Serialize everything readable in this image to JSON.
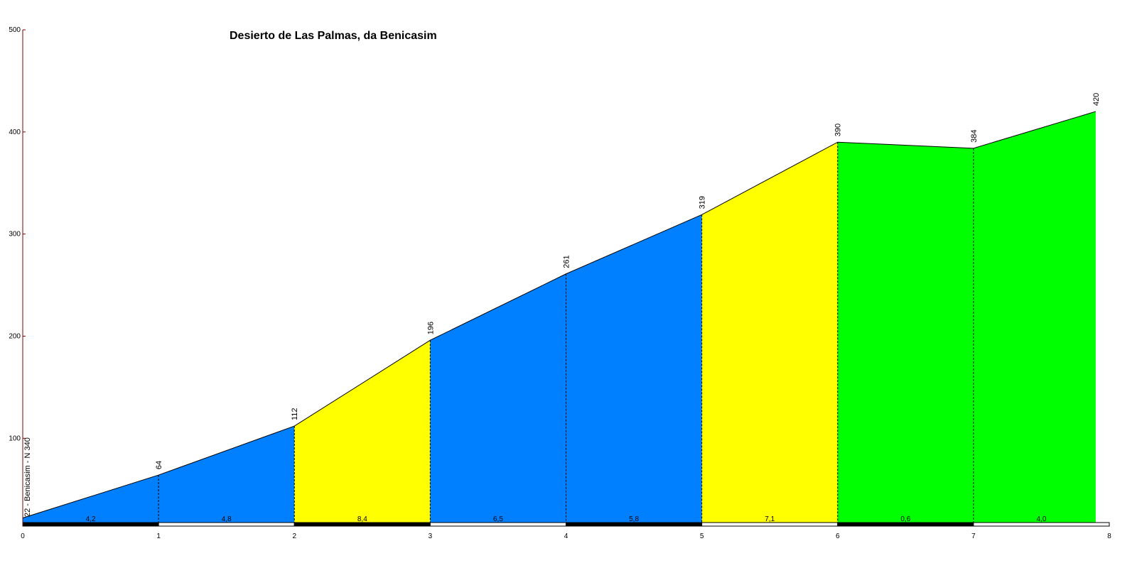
{
  "chart_data": {
    "type": "area",
    "title": "Desierto de Las Palmas, da Benicasim",
    "start_label": "22 - Benicasim - N 340",
    "xlim": [
      0,
      8
    ],
    "ylim": [
      0,
      500
    ],
    "x_ticks": [
      "0",
      "1",
      "2",
      "3",
      "4",
      "5",
      "6",
      "7",
      "8"
    ],
    "y_ticks": [
      "100",
      "200",
      "300",
      "400",
      "500"
    ],
    "x": [
      0,
      1,
      2,
      3,
      4,
      5,
      6,
      7,
      7.9
    ],
    "altitudes": [
      22,
      64,
      112,
      196,
      261,
      319,
      390,
      384,
      420
    ],
    "altitude_labels": [
      "",
      "64",
      "112",
      "196",
      "261",
      "319",
      "390",
      "384",
      "420"
    ],
    "segments": [
      {
        "grade": "4,2",
        "color": "#0080ff"
      },
      {
        "grade": "4,8",
        "color": "#0080ff"
      },
      {
        "grade": "8,4",
        "color": "#ffff00"
      },
      {
        "grade": "6,5",
        "color": "#0080ff"
      },
      {
        "grade": "5,8",
        "color": "#0080ff"
      },
      {
        "grade": "7,1",
        "color": "#ffff00"
      },
      {
        "grade": "0,6",
        "color": "#00ff00"
      },
      {
        "grade": "4,0",
        "color": "#00ff00"
      }
    ],
    "axis_color": "#800000"
  }
}
